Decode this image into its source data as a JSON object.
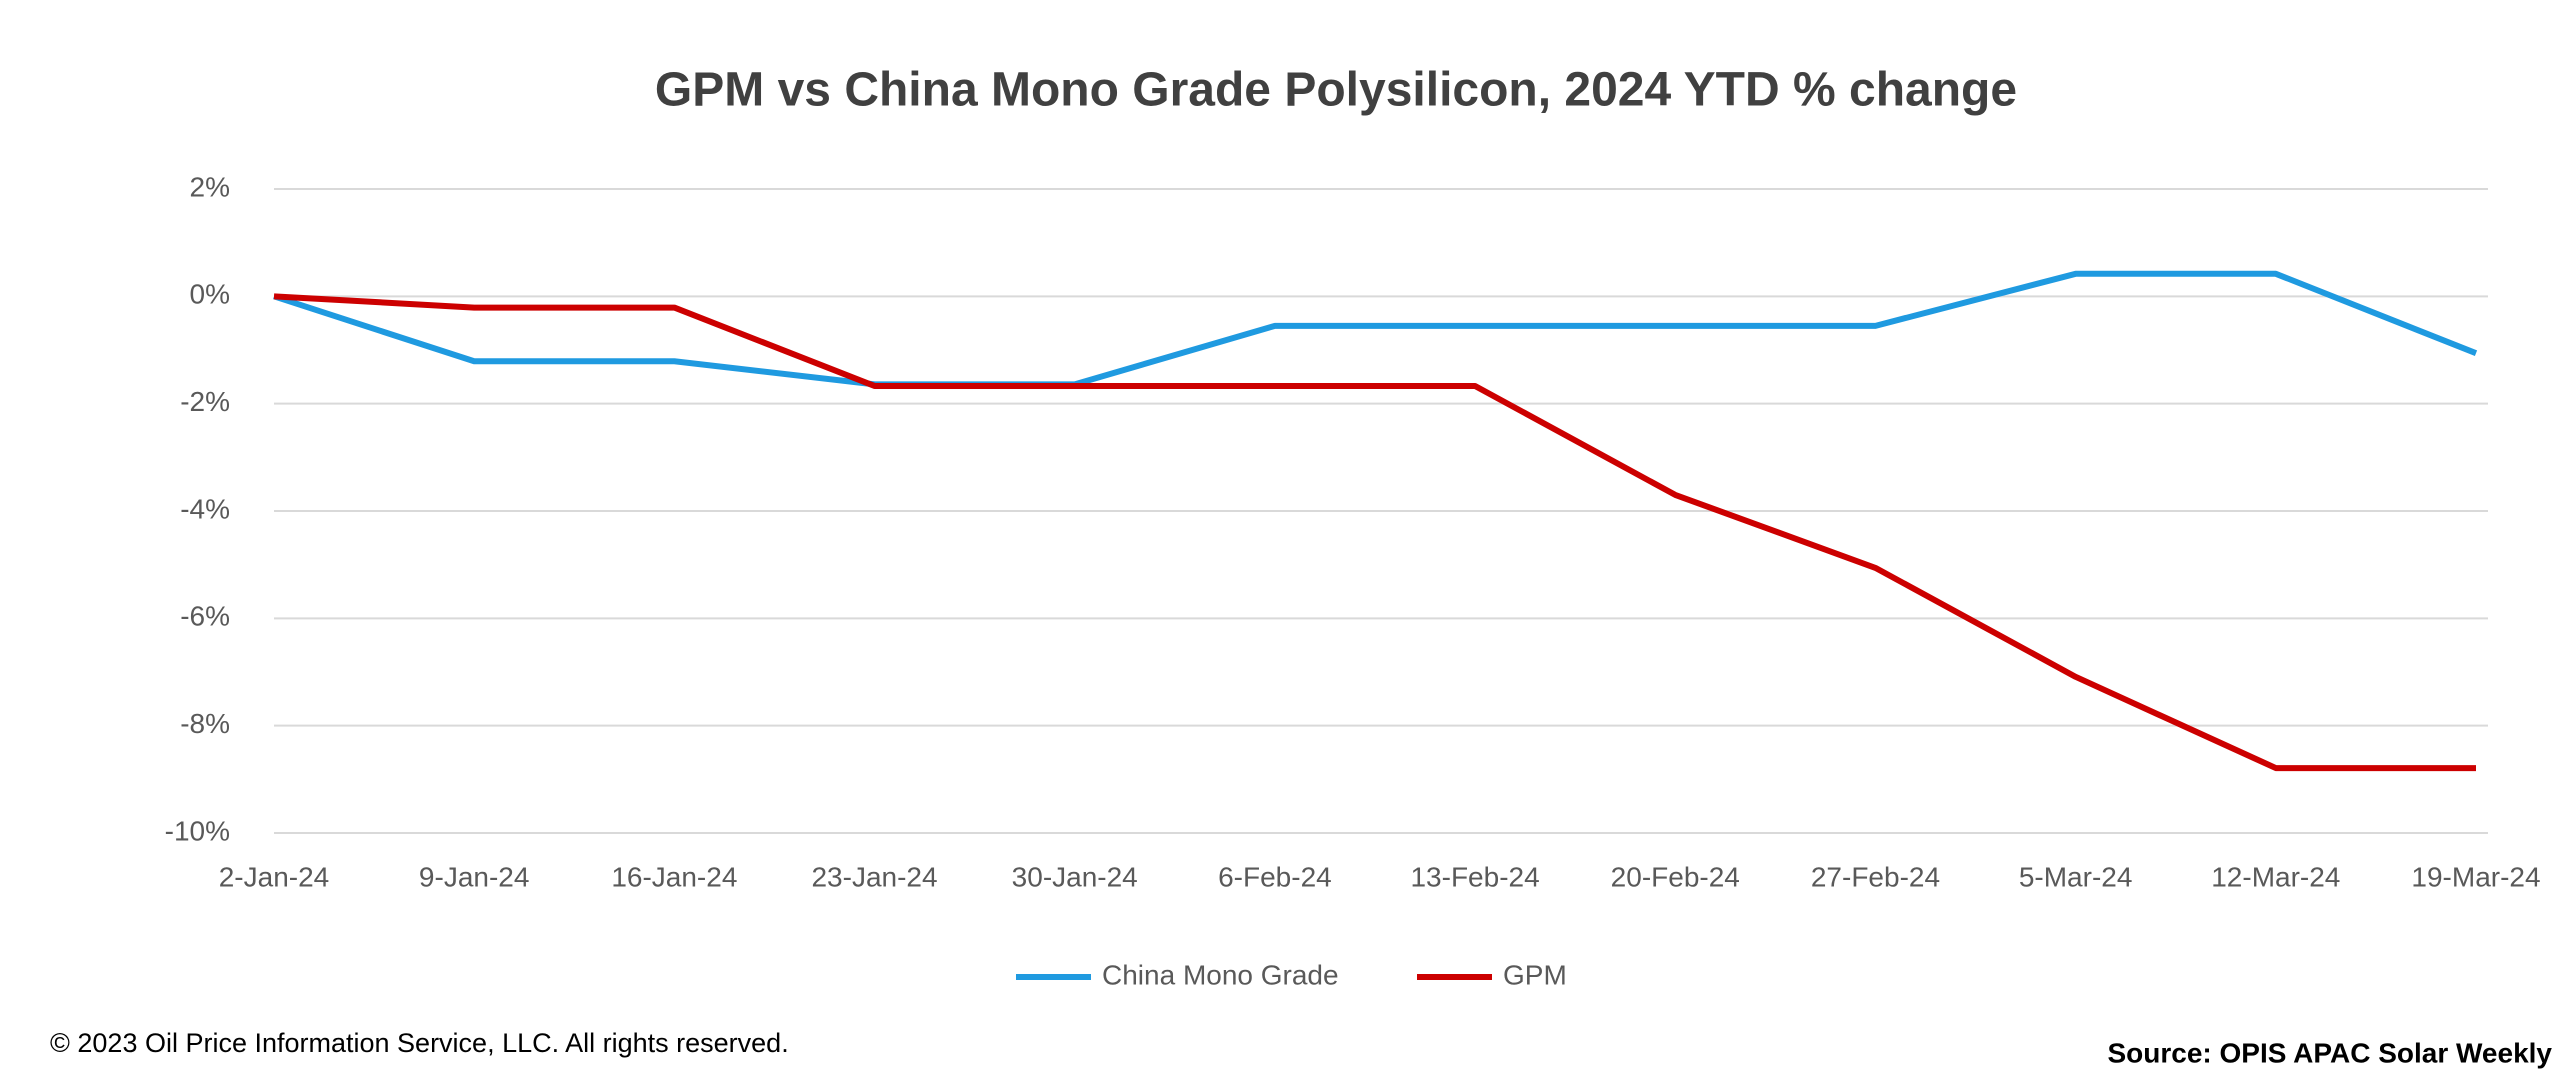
{
  "chart_data": {
    "type": "line",
    "title": "GPM vs China Mono Grade Polysilicon, 2024 YTD % change",
    "categories": [
      "2-Jan-24",
      "9-Jan-24",
      "16-Jan-24",
      "23-Jan-24",
      "30-Jan-24",
      "6-Feb-24",
      "13-Feb-24",
      "20-Feb-24",
      "27-Feb-24",
      "5-Mar-24",
      "12-Mar-24",
      "19-Mar-24"
    ],
    "series": [
      {
        "name": "China Mono Grade",
        "color": "#1f9ae0",
        "values": [
          0,
          -1.21,
          -1.21,
          -1.64,
          -1.64,
          -0.55,
          -0.55,
          -0.55,
          -0.55,
          0.42,
          0.42,
          -1.06
        ]
      },
      {
        "name": "GPM",
        "color": "#cc0000",
        "values": [
          0,
          -0.21,
          -0.21,
          -1.67,
          -1.67,
          -1.67,
          -1.67,
          -3.7,
          -5.06,
          -7.09,
          -8.79,
          -8.79
        ]
      }
    ],
    "ylim": [
      -10,
      2
    ],
    "yticks": [
      {
        "value": -10,
        "label": "-10%"
      },
      {
        "value": -8,
        "label": "-8%"
      },
      {
        "value": -6,
        "label": "-6%"
      },
      {
        "value": -4,
        "label": "-4%"
      },
      {
        "value": -2,
        "label": "-2%"
      },
      {
        "value": 0,
        "label": "0%"
      },
      {
        "value": 2,
        "label": "2%"
      }
    ],
    "grid": true,
    "legend": "bottom",
    "copyright": "© 2023 Oil Price Information Service, LLC. All rights reserved.",
    "source": "Source: OPIS APAC Solar Weekly"
  }
}
